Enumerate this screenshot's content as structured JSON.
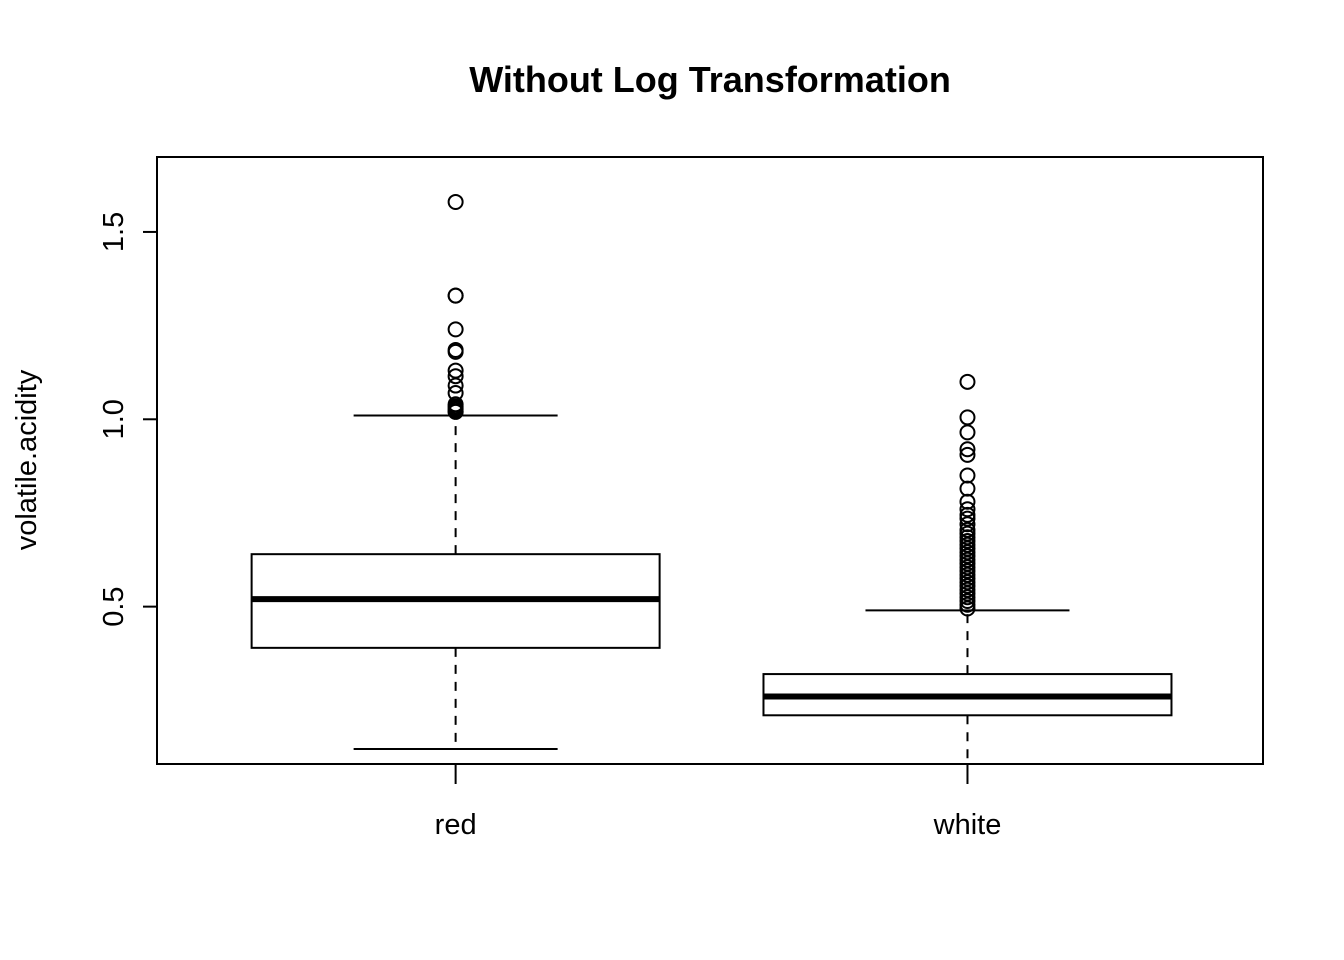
{
  "chart_data": {
    "type": "boxplot",
    "title": "Without Log Transformation",
    "xlabel": "",
    "ylabel": "volatile.acidity",
    "ylim": [
      0.08,
      1.7
    ],
    "yticks": [
      0.5,
      1.0,
      1.5
    ],
    "ytick_labels": [
      "0.5",
      "1.0",
      "1.5"
    ],
    "grid": false,
    "legend": "none",
    "groups": [
      {
        "name": "red",
        "min": 0.12,
        "q1": 0.39,
        "median": 0.52,
        "q3": 0.64,
        "max": 1.01,
        "outliers": [
          1.58,
          1.33,
          1.33,
          1.24,
          1.185,
          1.18,
          1.13,
          1.115,
          1.09,
          1.07,
          1.04,
          1.035,
          1.03,
          1.025,
          1.02,
          1.02
        ]
      },
      {
        "name": "white",
        "min": 0.08,
        "q1": 0.21,
        "median": 0.26,
        "q3": 0.32,
        "max": 0.49,
        "outliers": [
          1.1,
          1.005,
          0.965,
          0.92,
          0.905,
          0.85,
          0.815,
          0.78,
          0.76,
          0.745,
          0.735,
          0.72,
          0.705,
          0.695,
          0.685,
          0.675,
          0.665,
          0.655,
          0.645,
          0.635,
          0.625,
          0.615,
          0.605,
          0.595,
          0.585,
          0.575,
          0.565,
          0.555,
          0.545,
          0.535,
          0.525,
          0.515,
          0.505,
          0.495
        ]
      }
    ]
  }
}
